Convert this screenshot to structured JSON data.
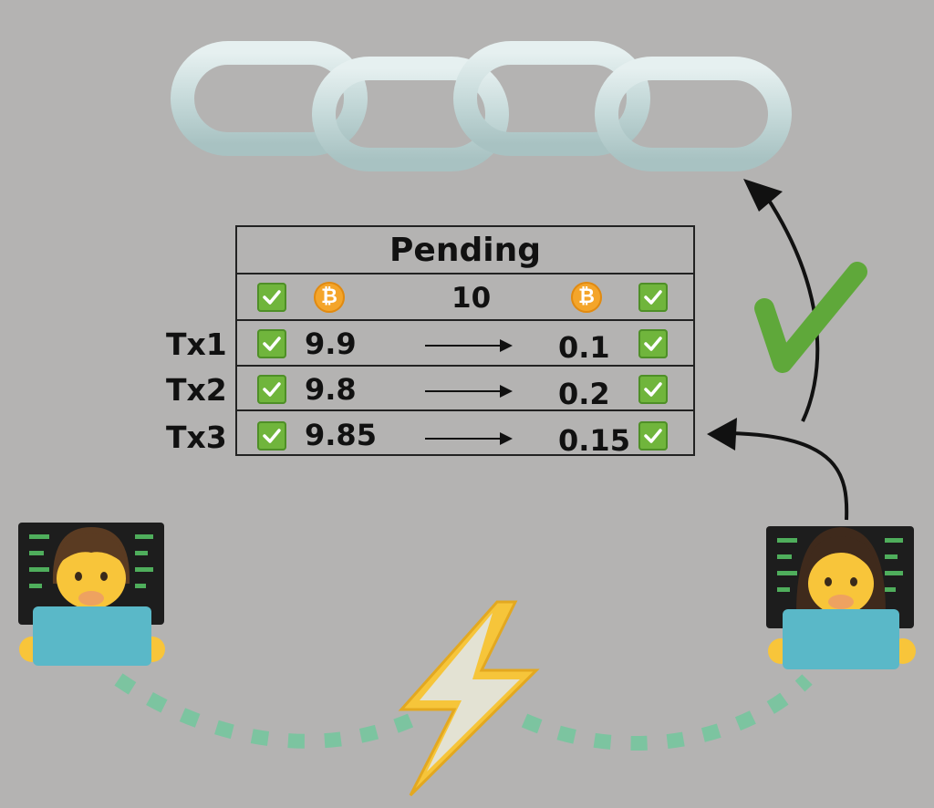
{
  "table": {
    "title": "Pending",
    "header_amount": "10",
    "rows": [
      {
        "label": "Tx1",
        "sent": "9.9",
        "received": "0.1"
      },
      {
        "label": "Tx2",
        "sent": "9.8",
        "received": "0.2"
      },
      {
        "label": "Tx3",
        "sent": "9.85",
        "received": "0.15"
      }
    ]
  },
  "icons": {
    "coin_symbol": "₿",
    "chain": "chain-icon",
    "check": "green-checkmark-icon",
    "lightning": "lightning-bolt-icon",
    "user_left": "male-technologist-icon",
    "user_right": "female-technologist-icon"
  },
  "colors": {
    "background": "#b4b3b2",
    "chain": "#c8dcdc",
    "check_green": "#6cbb3c",
    "coin_orange": "#f4a52a",
    "laptop_blue": "#5ab8c8",
    "dash_teal": "#7cc4a0",
    "bolt_yellow": "#f6c53a"
  }
}
